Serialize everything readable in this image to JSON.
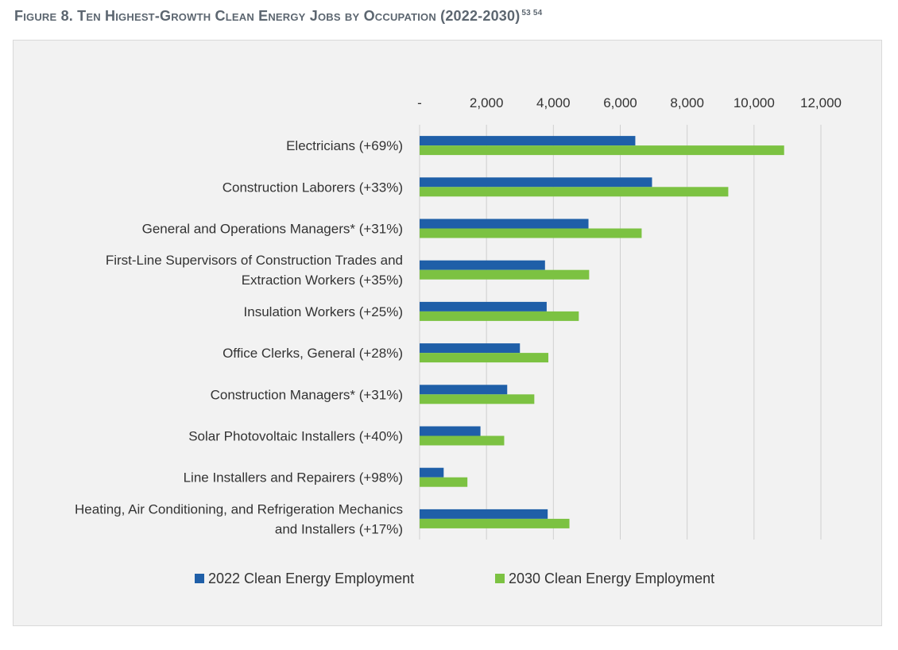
{
  "figure": {
    "title": "Figure 8. Ten Highest-Growth Clean Energy Jobs by Occupation (2022-2030)",
    "footnotes": "53  54"
  },
  "colors": {
    "series_2022": "#1f5fa8",
    "series_2030": "#7cc242",
    "gridline": "#d0d0d0",
    "panel_background": "#f2f2f2"
  },
  "chart_data": {
    "type": "bar",
    "orientation": "horizontal",
    "title": "Figure 8. Ten Highest-Growth Clean Energy Jobs by Occupation (2022-2030)",
    "xlim": [
      0,
      12000
    ],
    "x_ticks": [
      0,
      2000,
      4000,
      6000,
      8000,
      10000,
      12000
    ],
    "x_tick_labels": [
      "-",
      "2,000",
      "4,000",
      "6,000",
      "8,000",
      "10,000",
      "12,000"
    ],
    "x_axis_position": "top",
    "grid": true,
    "legend_position": "bottom",
    "categories": [
      [
        "Electricians (+69%)"
      ],
      [
        "Construction Laborers (+33%)"
      ],
      [
        "General and Operations Managers* (+31%)"
      ],
      [
        "First-Line Supervisors of Construction Trades and",
        "Extraction Workers (+35%)"
      ],
      [
        "Insulation Workers (+25%)"
      ],
      [
        "Office Clerks, General (+28%)"
      ],
      [
        "Construction Managers* (+31%)"
      ],
      [
        "Solar Photovoltaic Installers (+40%)"
      ],
      [
        "Line Installers and Repairers (+98%)"
      ],
      [
        "Heating, Air Conditioning, and Refrigeration Mechanics",
        "and Installers (+17%)"
      ]
    ],
    "series": [
      {
        "name": "2022 Clean Energy Employment",
        "values": [
          6450,
          6950,
          5050,
          3750,
          3800,
          3000,
          2620,
          1820,
          720,
          3830
        ]
      },
      {
        "name": "2030 Clean Energy Employment",
        "values": [
          10900,
          9230,
          6640,
          5070,
          4760,
          3850,
          3430,
          2530,
          1430,
          4480
        ]
      }
    ]
  }
}
